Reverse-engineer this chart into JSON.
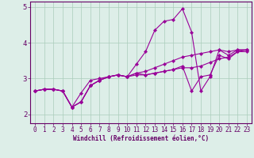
{
  "xlabel": "Windchill (Refroidissement éolien,°C)",
  "bg_color": "#ddeee8",
  "line_color": "#990099",
  "grid_color": "#aaccbb",
  "axis_color": "#660066",
  "text_color": "#660066",
  "xlim": [
    -0.5,
    23.5
  ],
  "ylim": [
    1.75,
    5.15
  ],
  "yticks": [
    2,
    3,
    4,
    5
  ],
  "xticks": [
    0,
    1,
    2,
    3,
    4,
    5,
    6,
    7,
    8,
    9,
    10,
    11,
    12,
    13,
    14,
    15,
    16,
    17,
    18,
    19,
    20,
    21,
    22,
    23
  ],
  "series": [
    [
      2.65,
      2.7,
      2.7,
      2.65,
      2.2,
      2.6,
      2.95,
      3.0,
      3.05,
      3.1,
      3.05,
      3.4,
      3.75,
      4.35,
      4.6,
      4.65,
      4.95,
      4.3,
      2.65,
      3.05,
      3.8,
      3.65,
      3.8,
      3.8
    ],
    [
      2.65,
      2.7,
      2.7,
      2.65,
      2.2,
      2.35,
      2.8,
      2.95,
      3.05,
      3.1,
      3.05,
      3.15,
      3.1,
      3.15,
      3.2,
      3.25,
      3.3,
      3.3,
      3.35,
      3.45,
      3.55,
      3.6,
      3.75,
      3.8
    ],
    [
      2.65,
      2.7,
      2.7,
      2.65,
      2.2,
      2.35,
      2.8,
      2.95,
      3.05,
      3.1,
      3.05,
      3.15,
      3.2,
      3.3,
      3.4,
      3.5,
      3.6,
      3.65,
      3.7,
      3.75,
      3.8,
      3.75,
      3.8,
      3.8
    ],
    [
      2.65,
      2.7,
      2.7,
      2.65,
      2.2,
      2.35,
      2.8,
      2.95,
      3.05,
      3.1,
      3.05,
      3.1,
      3.1,
      3.15,
      3.2,
      3.25,
      3.35,
      2.65,
      3.05,
      3.1,
      3.65,
      3.55,
      3.75,
      3.75
    ]
  ],
  "xlabel_fontsize": 5.5,
  "tick_fontsize": 5.5,
  "linewidth": 0.8,
  "markersize": 2.2
}
